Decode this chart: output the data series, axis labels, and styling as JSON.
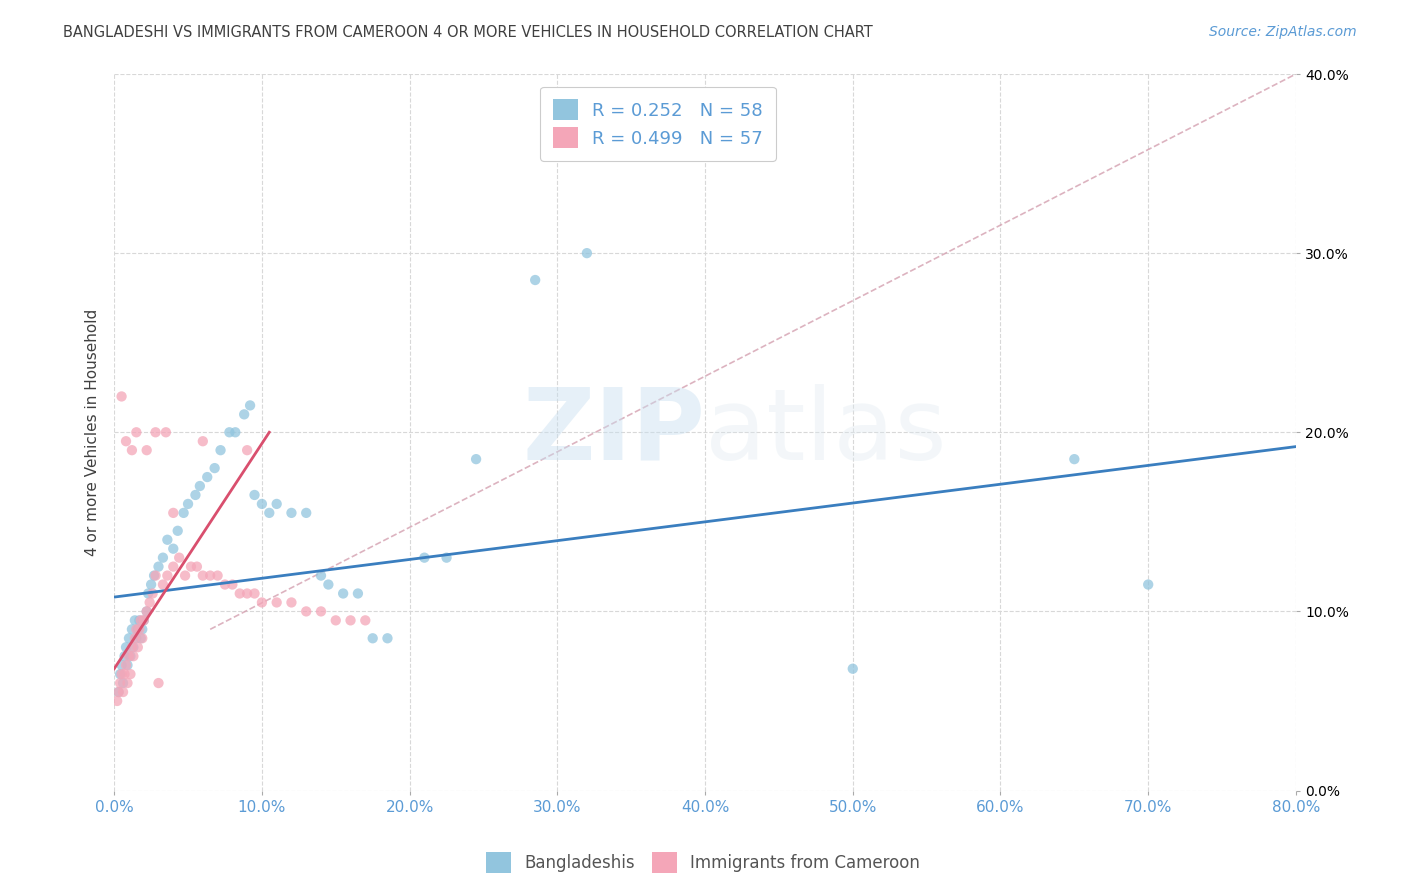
{
  "title": "BANGLADESHI VS IMMIGRANTS FROM CAMEROON 4 OR MORE VEHICLES IN HOUSEHOLD CORRELATION CHART",
  "source": "Source: ZipAtlas.com",
  "ylabel": "4 or more Vehicles in Household",
  "xlim": [
    0.0,
    0.8
  ],
  "ylim": [
    0.0,
    0.4
  ],
  "xticks": [
    0.0,
    0.1,
    0.2,
    0.3,
    0.4,
    0.5,
    0.6,
    0.7,
    0.8
  ],
  "yticks": [
    0.0,
    0.1,
    0.2,
    0.3,
    0.4
  ],
  "legend1_r": "0.252",
  "legend1_n": "58",
  "legend2_r": "0.499",
  "legend2_n": "57",
  "blue_color": "#92c5de",
  "pink_color": "#f4a6b8",
  "trend_blue": "#3a7ebf",
  "trend_pink": "#d94f6e",
  "trend_dash_color": "#d4a0b0",
  "watermark_zip": "ZIP",
  "watermark_atlas": "atlas",
  "bg_color": "#ffffff",
  "grid_color": "#d8d8d8",
  "tick_color": "#5b9bd5",
  "title_color": "#404040",
  "label_color": "#404040",
  "blue_x": [
    0.003,
    0.004,
    0.005,
    0.006,
    0.007,
    0.008,
    0.009,
    0.01,
    0.011,
    0.012,
    0.013,
    0.014,
    0.015,
    0.016,
    0.017,
    0.018,
    0.019,
    0.02,
    0.022,
    0.023,
    0.025,
    0.027,
    0.03,
    0.033,
    0.036,
    0.04,
    0.043,
    0.047,
    0.05,
    0.055,
    0.058,
    0.063,
    0.068,
    0.072,
    0.078,
    0.082,
    0.088,
    0.092,
    0.095,
    0.1,
    0.105,
    0.11,
    0.12,
    0.13,
    0.14,
    0.145,
    0.155,
    0.165,
    0.175,
    0.185,
    0.21,
    0.225,
    0.245,
    0.285,
    0.32,
    0.5,
    0.65,
    0.7
  ],
  "blue_y": [
    0.055,
    0.065,
    0.07,
    0.06,
    0.075,
    0.08,
    0.07,
    0.085,
    0.075,
    0.09,
    0.08,
    0.095,
    0.085,
    0.09,
    0.095,
    0.085,
    0.09,
    0.095,
    0.1,
    0.11,
    0.115,
    0.12,
    0.125,
    0.13,
    0.14,
    0.135,
    0.145,
    0.155,
    0.16,
    0.165,
    0.17,
    0.175,
    0.18,
    0.19,
    0.2,
    0.2,
    0.21,
    0.215,
    0.165,
    0.16,
    0.155,
    0.16,
    0.155,
    0.155,
    0.12,
    0.115,
    0.11,
    0.11,
    0.085,
    0.085,
    0.13,
    0.13,
    0.185,
    0.285,
    0.3,
    0.068,
    0.185,
    0.115
  ],
  "pink_x": [
    0.002,
    0.003,
    0.004,
    0.005,
    0.006,
    0.007,
    0.008,
    0.009,
    0.01,
    0.011,
    0.012,
    0.013,
    0.014,
    0.015,
    0.016,
    0.017,
    0.018,
    0.019,
    0.02,
    0.022,
    0.024,
    0.026,
    0.028,
    0.03,
    0.033,
    0.036,
    0.04,
    0.044,
    0.048,
    0.052,
    0.056,
    0.06,
    0.065,
    0.07,
    0.075,
    0.08,
    0.085,
    0.09,
    0.095,
    0.1,
    0.11,
    0.12,
    0.13,
    0.14,
    0.15,
    0.16,
    0.17,
    0.09,
    0.04,
    0.035,
    0.005,
    0.008,
    0.012,
    0.015,
    0.022,
    0.028,
    0.06
  ],
  "pink_y": [
    0.05,
    0.055,
    0.06,
    0.065,
    0.055,
    0.065,
    0.07,
    0.06,
    0.075,
    0.065,
    0.08,
    0.075,
    0.085,
    0.09,
    0.08,
    0.09,
    0.095,
    0.085,
    0.095,
    0.1,
    0.105,
    0.11,
    0.12,
    0.06,
    0.115,
    0.12,
    0.125,
    0.13,
    0.12,
    0.125,
    0.125,
    0.12,
    0.12,
    0.12,
    0.115,
    0.115,
    0.11,
    0.11,
    0.11,
    0.105,
    0.105,
    0.105,
    0.1,
    0.1,
    0.095,
    0.095,
    0.095,
    0.19,
    0.155,
    0.2,
    0.22,
    0.195,
    0.19,
    0.2,
    0.19,
    0.2,
    0.195
  ],
  "blue_trend_x": [
    0.0,
    0.8
  ],
  "blue_trend_y": [
    0.108,
    0.192
  ],
  "pink_trend_x": [
    0.0,
    0.105
  ],
  "pink_trend_y": [
    0.068,
    0.2
  ],
  "dash_trend_x": [
    0.065,
    0.8
  ],
  "dash_trend_y": [
    0.09,
    0.4
  ]
}
